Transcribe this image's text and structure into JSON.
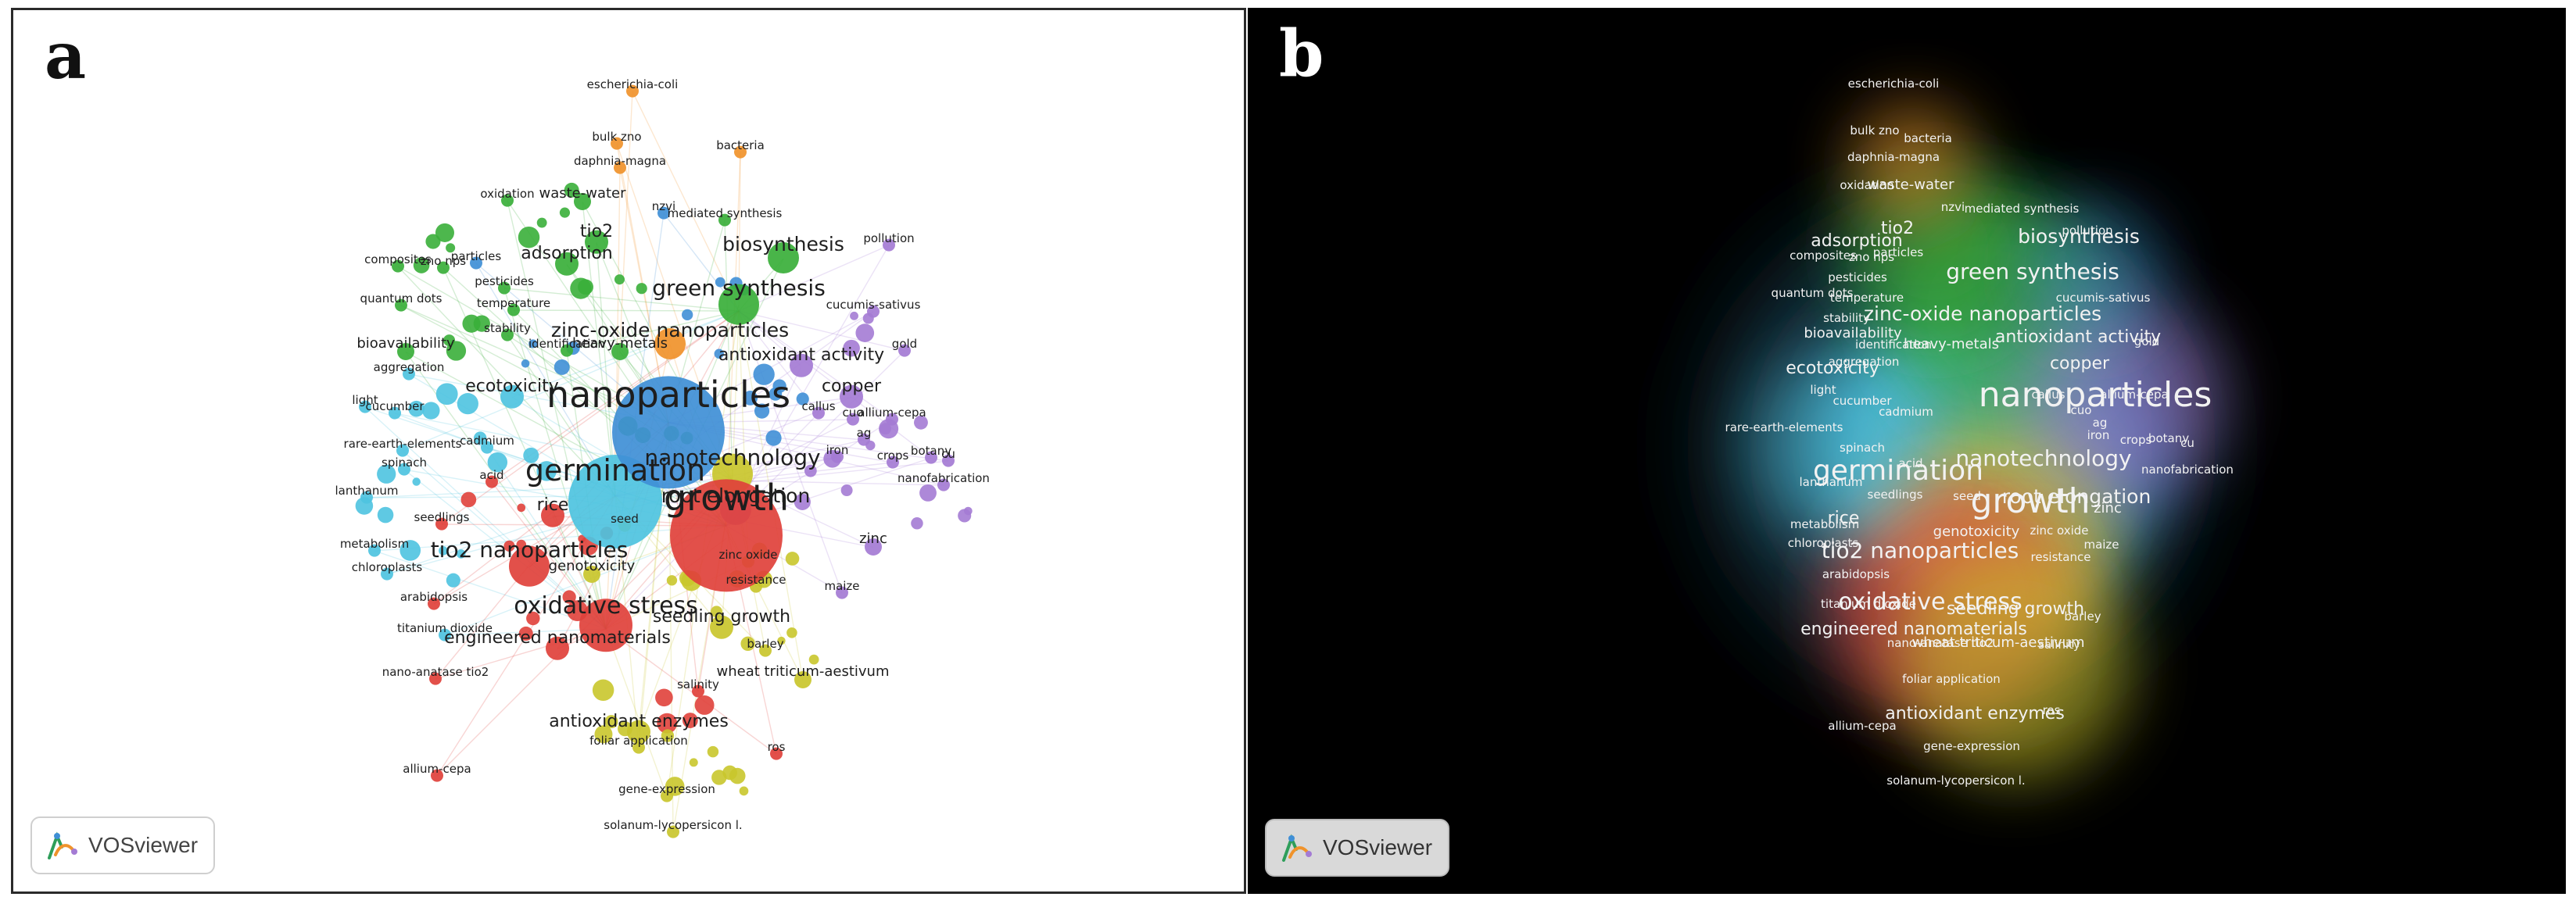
{
  "panels": {
    "a": {
      "letter": "a",
      "logo_label": "VOSviewer",
      "logo_icon": "vosviewer-logo-icon",
      "view": "network-visualization"
    },
    "b": {
      "letter": "b",
      "logo_label": "VOSviewer",
      "logo_icon": "vosviewer-logo-icon",
      "view": "density-visualization"
    }
  },
  "colors": {
    "red": "#e0413b",
    "green": "#3aaf3a",
    "blue": "#3f8fd6",
    "yellow": "#c9c62c",
    "purple": "#a47bd4",
    "cyan": "#4ec3e0",
    "orange": "#f0932b",
    "panel_b_background": "#000000"
  },
  "keywords": [
    {
      "label": "nanoparticles",
      "cluster": "blue",
      "weight": 10
    },
    {
      "label": "growth",
      "cluster": "red",
      "weight": 9
    },
    {
      "label": "germination",
      "cluster": "cyan",
      "weight": 8
    },
    {
      "label": "green synthesis",
      "cluster": "green",
      "weight": 5
    },
    {
      "label": "oxidative stress",
      "cluster": "red",
      "weight": 6
    },
    {
      "label": "nanotechnology",
      "cluster": "yellow",
      "weight": 5
    },
    {
      "label": "tio2 nanoparticles",
      "cluster": "red",
      "weight": 5
    },
    {
      "label": "zinc-oxide nanoparticles",
      "cluster": "orange",
      "weight": 4
    },
    {
      "label": "root elongation",
      "cluster": "purple",
      "weight": 4
    },
    {
      "label": "biosynthesis",
      "cluster": "green",
      "weight": 4
    },
    {
      "label": "adsorption",
      "cluster": "green",
      "weight": 3
    },
    {
      "label": "ecotoxicity",
      "cluster": "cyan",
      "weight": 3
    },
    {
      "label": "copper",
      "cluster": "purple",
      "weight": 3
    },
    {
      "label": "rice",
      "cluster": "red",
      "weight": 3
    },
    {
      "label": "seedling growth",
      "cluster": "yellow",
      "weight": 3
    },
    {
      "label": "engineered nanomaterials",
      "cluster": "red",
      "weight": 3
    },
    {
      "label": "antioxidant enzymes",
      "cluster": "yellow",
      "weight": 3
    },
    {
      "label": "antioxidant activity",
      "cluster": "purple",
      "weight": 3
    },
    {
      "label": "tio2",
      "cluster": "green",
      "weight": 3
    },
    {
      "label": "genotoxicity",
      "cluster": "yellow",
      "weight": 2
    },
    {
      "label": "zinc",
      "cluster": "purple",
      "weight": 2
    },
    {
      "label": "escherichia-coli",
      "cluster": "orange",
      "weight": 1
    },
    {
      "label": "bulk zno",
      "cluster": "orange",
      "weight": 1
    },
    {
      "label": "bacteria",
      "cluster": "orange",
      "weight": 1
    },
    {
      "label": "daphnia-magna",
      "cluster": "orange",
      "weight": 1
    },
    {
      "label": "oxidation",
      "cluster": "green",
      "weight": 1
    },
    {
      "label": "waste-water",
      "cluster": "green",
      "weight": 2
    },
    {
      "label": "nzvi",
      "cluster": "blue",
      "weight": 1
    },
    {
      "label": "mediated synthesis",
      "cluster": "green",
      "weight": 1
    },
    {
      "label": "pollution",
      "cluster": "purple",
      "weight": 1
    },
    {
      "label": "composites",
      "cluster": "green",
      "weight": 1
    },
    {
      "label": "zno nps",
      "cluster": "green",
      "weight": 1
    },
    {
      "label": "particles",
      "cluster": "blue",
      "weight": 1
    },
    {
      "label": "pesticides",
      "cluster": "green",
      "weight": 1
    },
    {
      "label": "quantum dots",
      "cluster": "green",
      "weight": 1
    },
    {
      "label": "temperature",
      "cluster": "green",
      "weight": 1
    },
    {
      "label": "cucumis-sativus",
      "cluster": "purple",
      "weight": 1
    },
    {
      "label": "bioavailability",
      "cluster": "green",
      "weight": 2
    },
    {
      "label": "stability",
      "cluster": "green",
      "weight": 1
    },
    {
      "label": "identification",
      "cluster": "green",
      "weight": 1
    },
    {
      "label": "heavy-metals",
      "cluster": "green",
      "weight": 2
    },
    {
      "label": "gold",
      "cluster": "purple",
      "weight": 1
    },
    {
      "label": "aggregation",
      "cluster": "cyan",
      "weight": 1
    },
    {
      "label": "light",
      "cluster": "cyan",
      "weight": 1
    },
    {
      "label": "cucumber",
      "cluster": "cyan",
      "weight": 1
    },
    {
      "label": "callus",
      "cluster": "purple",
      "weight": 1
    },
    {
      "label": "cuo",
      "cluster": "purple",
      "weight": 1
    },
    {
      "label": "allium-cepa",
      "cluster": "purple",
      "weight": 1
    },
    {
      "label": "ag",
      "cluster": "purple",
      "weight": 1
    },
    {
      "label": "cadmium",
      "cluster": "cyan",
      "weight": 1
    },
    {
      "label": "iron",
      "cluster": "purple",
      "weight": 1
    },
    {
      "label": "rare-earth-elements",
      "cluster": "cyan",
      "weight": 1
    },
    {
      "label": "crops",
      "cluster": "purple",
      "weight": 1
    },
    {
      "label": "botany",
      "cluster": "purple",
      "weight": 1
    },
    {
      "label": "cu",
      "cluster": "purple",
      "weight": 1
    },
    {
      "label": "spinach",
      "cluster": "cyan",
      "weight": 1
    },
    {
      "label": "lanthanum",
      "cluster": "cyan",
      "weight": 1
    },
    {
      "label": "acid",
      "cluster": "red",
      "weight": 1
    },
    {
      "label": "nanofabrication",
      "cluster": "purple",
      "weight": 1
    },
    {
      "label": "seedlings",
      "cluster": "red",
      "weight": 1
    },
    {
      "label": "seed",
      "cluster": "yellow",
      "weight": 1
    },
    {
      "label": "metabolism",
      "cluster": "cyan",
      "weight": 1
    },
    {
      "label": "chloroplasts",
      "cluster": "cyan",
      "weight": 1
    },
    {
      "label": "zinc oxide",
      "cluster": "yellow",
      "weight": 1
    },
    {
      "label": "resistance",
      "cluster": "yellow",
      "weight": 1
    },
    {
      "label": "maize",
      "cluster": "purple",
      "weight": 1
    },
    {
      "label": "arabidopsis",
      "cluster": "red",
      "weight": 1
    },
    {
      "label": "titanium dioxide",
      "cluster": "cyan",
      "weight": 1
    },
    {
      "label": "barley",
      "cluster": "yellow",
      "weight": 1
    },
    {
      "label": "nano-anatase tio2",
      "cluster": "red",
      "weight": 1
    },
    {
      "label": "salinity",
      "cluster": "red",
      "weight": 1
    },
    {
      "label": "wheat triticum-aestivum",
      "cluster": "yellow",
      "weight": 2
    },
    {
      "label": "foliar application",
      "cluster": "yellow",
      "weight": 1
    },
    {
      "label": "ros",
      "cluster": "red",
      "weight": 1
    },
    {
      "label": "allium-cepa",
      "cluster": "red",
      "weight": 1
    },
    {
      "label": "gene-expression",
      "cluster": "yellow",
      "weight": 1
    },
    {
      "label": "solanum-lycopersicon l.",
      "cluster": "yellow",
      "weight": 1
    }
  ]
}
